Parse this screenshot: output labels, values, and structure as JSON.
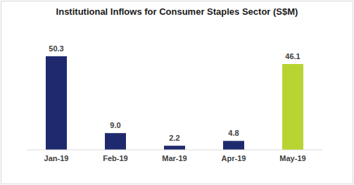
{
  "chart_data": {
    "type": "bar",
    "title": "Institutional Inflows for Consumer Staples Sector (S$M)",
    "categories": [
      "Jan-19",
      "Feb-19",
      "Mar-19",
      "Apr-19",
      "May-19"
    ],
    "values": [
      50.3,
      9.0,
      2.2,
      4.8,
      46.1
    ],
    "value_labels": [
      "50.3",
      "9.0",
      "2.2",
      "4.8",
      "46.1"
    ],
    "colors": [
      "#1f2a6e",
      "#1f2a6e",
      "#1f2a6e",
      "#1f2a6e",
      "#b8d432"
    ],
    "data_labels": true,
    "tick_labels": "x",
    "grid": false
  }
}
